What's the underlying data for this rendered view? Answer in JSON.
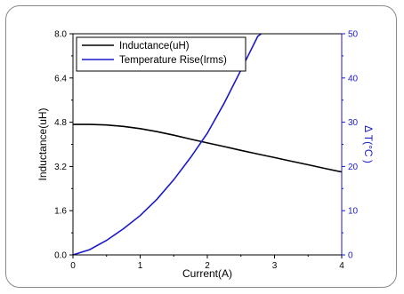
{
  "chart_data": {
    "type": "line",
    "title": "",
    "xlabel": "Current(A)",
    "ylabel": "Inductance(uH)",
    "y2label": "Δ T(°C )",
    "xlim": [
      0,
      4
    ],
    "ylim": [
      0,
      8
    ],
    "y2lim": [
      0,
      50
    ],
    "xticks": [
      "0",
      "1",
      "2",
      "3",
      "4"
    ],
    "yticks": [
      "0.0",
      "1.6",
      "3.2",
      "4.8",
      "6.4",
      "8.0"
    ],
    "y2ticks": [
      "0",
      "10",
      "20",
      "30",
      "40",
      "50"
    ],
    "grid": false,
    "legend_position": "top-left",
    "series": [
      {
        "name": "Inductance(uH)",
        "axis": "left",
        "color": "#000000",
        "x": [
          0,
          0.25,
          0.5,
          0.75,
          1.0,
          1.25,
          1.5,
          1.75,
          2.0,
          2.25,
          2.5,
          2.75,
          3.0,
          3.25,
          3.5,
          3.75,
          4.0
        ],
        "y": [
          4.72,
          4.72,
          4.7,
          4.65,
          4.57,
          4.46,
          4.33,
          4.19,
          4.05,
          3.92,
          3.78,
          3.65,
          3.52,
          3.39,
          3.26,
          3.13,
          3.0
        ]
      },
      {
        "name": "Temperature Rise(Irms)",
        "axis": "right",
        "color": "#1a1acc",
        "x": [
          0,
          0.25,
          0.5,
          0.75,
          1.0,
          1.25,
          1.5,
          1.75,
          2.0,
          2.25,
          2.5,
          2.75,
          2.8
        ],
        "y": [
          0,
          1.2,
          3.3,
          5.9,
          8.9,
          12.6,
          17.0,
          22.0,
          27.5,
          34.3,
          41.8,
          49.4,
          50.0
        ]
      }
    ]
  }
}
